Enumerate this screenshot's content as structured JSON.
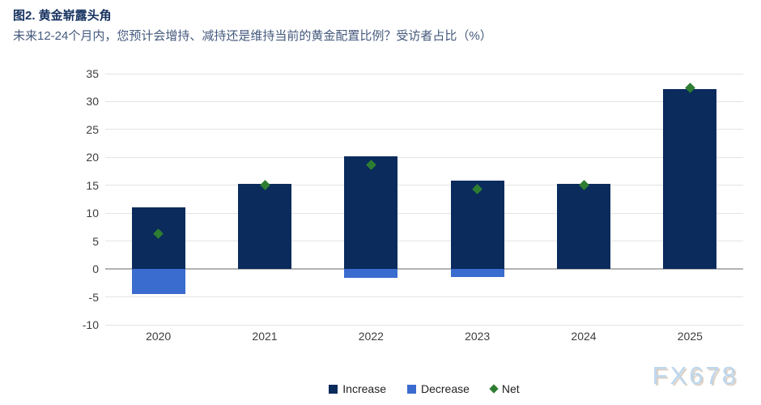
{
  "header": {
    "title": "图2. 黄金崭露头角",
    "subtitle": "未来12-24个月内，您预计会增持、减持还是维持当前的黄金配置比例？受访者占比（%）"
  },
  "watermark": "FX678",
  "colors": {
    "increase": "#0a2b5c",
    "decrease": "#3a6bce",
    "net": "#2e7d32",
    "title": "#16325f",
    "subtitle": "#44597c",
    "gridline": "#e4e4e4",
    "zero_line": "#b3b3b3",
    "watermark": "#bdd7ee"
  },
  "chart_data": {
    "type": "bar",
    "categories": [
      "2020",
      "2021",
      "2022",
      "2023",
      "2024",
      "2025"
    ],
    "series": [
      {
        "name": "Increase",
        "values": [
          11,
          15.2,
          20.2,
          15.8,
          15.2,
          32.3
        ]
      },
      {
        "name": "Decrease",
        "values": [
          -4.5,
          0,
          -1.6,
          -1.5,
          0,
          0
        ]
      },
      {
        "name": "Net",
        "values": [
          6.4,
          15.1,
          18.7,
          14.3,
          15.1,
          32.4
        ]
      }
    ],
    "title": "图2. 黄金崭露头角",
    "xlabel": "",
    "ylabel": "受访者占比（%）",
    "ylim": [
      -10,
      35
    ],
    "ytick_step": 5,
    "yticks": [
      35,
      30,
      25,
      20,
      15,
      10,
      5,
      0,
      -5,
      -10
    ],
    "grid": true,
    "legend": [
      "Increase",
      "Decrease",
      "Net"
    ],
    "legend_position": "bottom"
  }
}
